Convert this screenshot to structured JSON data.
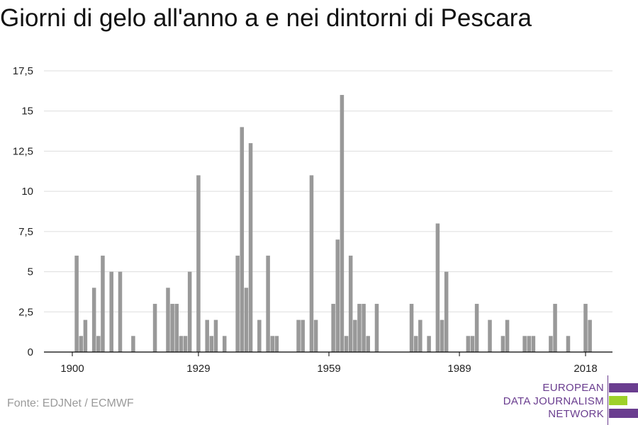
{
  "title": "Giorni di gelo all'anno a e nei dintorni di Pescara",
  "source": "Fonte: EDJNet / ECMWF",
  "logo": {
    "line1": "EUROPEAN",
    "line2": "DATA JOURNALISM",
    "line3": "NETWORK",
    "colors": {
      "text": "#6a3d8f",
      "bar_purple": "#6a3d8f",
      "bar_green": "#9ed12a"
    }
  },
  "colors": {
    "bar": "#999999",
    "grid": "#dddddd",
    "axis": "#000000"
  },
  "chart_data": {
    "type": "bar",
    "title": "Giorni di gelo all'anno a e nei dintorni di Pescara",
    "xlabel": "",
    "ylabel": "",
    "ylim": [
      0,
      17.5
    ],
    "xlim": [
      1900,
      2020
    ],
    "y_ticks": [
      0,
      2.5,
      5,
      7.5,
      10,
      12.5,
      15,
      17.5
    ],
    "y_tick_labels": [
      "0",
      "2,5",
      "5",
      "7,5",
      "10",
      "12,5",
      "15",
      "17,5"
    ],
    "x_ticks": [
      1900,
      1929,
      1959,
      1989,
      2018
    ],
    "x_tick_labels": [
      "1900",
      "1929",
      "1959",
      "1989",
      "2018"
    ],
    "grid": true,
    "legend": "none",
    "x": [
      1901,
      1902,
      1903,
      1905,
      1906,
      1907,
      1909,
      1911,
      1914,
      1919,
      1922,
      1923,
      1924,
      1925,
      1926,
      1927,
      1929,
      1931,
      1932,
      1933,
      1935,
      1938,
      1939,
      1940,
      1941,
      1943,
      1945,
      1946,
      1947,
      1952,
      1953,
      1955,
      1956,
      1960,
      1961,
      1962,
      1963,
      1964,
      1965,
      1966,
      1967,
      1968,
      1970,
      1978,
      1979,
      1980,
      1982,
      1984,
      1985,
      1986,
      1991,
      1992,
      1993,
      1996,
      1999,
      2000,
      2004,
      2005,
      2006,
      2010,
      2011,
      2014,
      2018,
      2019
    ],
    "values": [
      6,
      1,
      2,
      4,
      1,
      6,
      5,
      5,
      1,
      3,
      4,
      3,
      3,
      1,
      1,
      5,
      11,
      2,
      1,
      2,
      1,
      6,
      14,
      4,
      13,
      2,
      6,
      1,
      1,
      2,
      2,
      11,
      2,
      3,
      7,
      16,
      1,
      6,
      2,
      3,
      3,
      1,
      3,
      3,
      1,
      2,
      1,
      8,
      2,
      5,
      1,
      1,
      3,
      2,
      1,
      2,
      1,
      1,
      1,
      1,
      3,
      1,
      3,
      2
    ]
  }
}
